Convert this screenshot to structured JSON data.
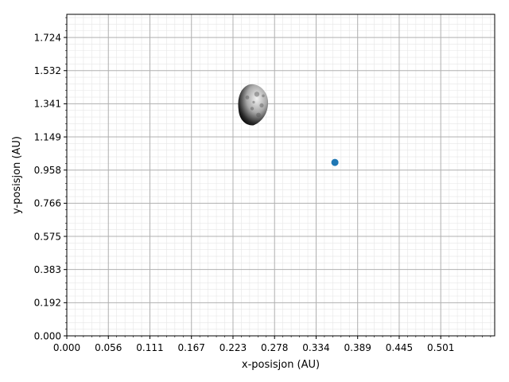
{
  "chart_data": {
    "type": "scatter",
    "xlabel": "x-posisjon (AU)",
    "ylabel": "y-posisjon (AU)",
    "xlim": [
      0.0,
      0.5736
    ],
    "ylim": [
      0.0,
      1.8582
    ],
    "xticks": [
      "0.000",
      "0.056",
      "0.111",
      "0.167",
      "0.223",
      "0.278",
      "0.334",
      "0.389",
      "0.445",
      "0.501"
    ],
    "xtick_values": [
      0.0,
      0.0557,
      0.1114,
      0.1671,
      0.2228,
      0.2785,
      0.3342,
      0.3899,
      0.4456,
      0.5013
    ],
    "yticks": [
      "0.000",
      "0.192",
      "0.383",
      "0.575",
      "0.766",
      "0.958",
      "1.149",
      "1.341",
      "1.532",
      "1.724"
    ],
    "ytick_values": [
      0.0,
      0.1916,
      0.3832,
      0.5748,
      0.7664,
      0.958,
      1.1496,
      1.3412,
      1.5328,
      1.7244
    ],
    "grid": true,
    "minor_grid": true,
    "points": [
      {
        "x": 0.3594,
        "y": 1.0022,
        "marker": "dot",
        "color": "#1f77b4"
      }
    ],
    "asteroid": {
      "x": 0.2505,
      "y": 1.3412,
      "icon": "asteroid-icon"
    }
  }
}
